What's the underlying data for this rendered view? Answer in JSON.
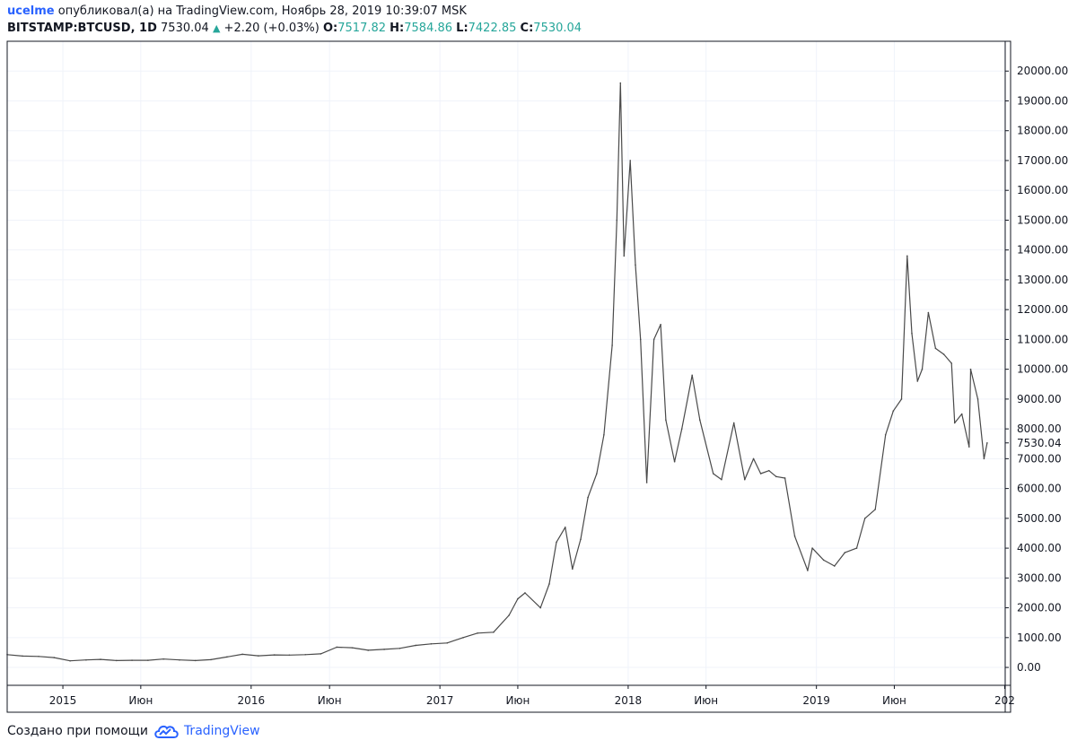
{
  "header": {
    "user": "ucelme",
    "published_text": "опубликовал(а) на TradingView.com, Ноябрь 28, 2019 10:39:07 MSK",
    "symbol": "BITSTAMP:BTCUSD, 1D",
    "price": "7530.04",
    "change": "+2.20 (+0.03%)",
    "o_label": "O:",
    "o_value": "7517.82",
    "h_label": "H:",
    "h_value": "7584.86",
    "l_label": "L:",
    "l_value": "7422.85",
    "c_label": "C:",
    "c_value": "7530.04"
  },
  "footer": {
    "created_text": "Создано при помощи",
    "brand": "TradingView"
  },
  "colors": {
    "accent": "#2962ff",
    "up": "#26a69a",
    "grid": "#f0f3fa",
    "candle": "#4a4a4a"
  },
  "chart_data": {
    "type": "line",
    "title": "",
    "xlabel": "",
    "ylabel": "",
    "ylim": [
      -600,
      21000
    ],
    "grid": true,
    "last_price_label": "7530.04",
    "y_ticks": [
      "0.00",
      "1000.00",
      "2000.00",
      "3000.00",
      "4000.00",
      "5000.00",
      "6000.00",
      "7000.00",
      "8000.00",
      "9000.00",
      "10000.00",
      "11000.00",
      "12000.00",
      "13000.00",
      "14000.00",
      "15000.00",
      "16000.00",
      "17000.00",
      "18000.00",
      "19000.00",
      "20000.00"
    ],
    "x_ticks": [
      "2015",
      "Июн",
      "2016",
      "Июн",
      "2017",
      "Июн",
      "2018",
      "Июн",
      "2019",
      "Июн",
      "202"
    ],
    "x_tick_values": [
      "2015-01-01",
      "2015-06-01",
      "2016-01-01",
      "2016-06-01",
      "2017-01-01",
      "2017-06-01",
      "2018-01-01",
      "2018-06-01",
      "2019-01-01",
      "2019-06-01",
      "2020-01-01"
    ],
    "x_range": [
      "2014-09-15",
      "2020-01-02"
    ],
    "series": [
      {
        "points": [
          [
            "2014-09-15",
            430
          ],
          [
            "2014-10-15",
            380
          ],
          [
            "2014-11-15",
            370
          ],
          [
            "2014-12-15",
            330
          ],
          [
            "2015-01-15",
            220
          ],
          [
            "2015-02-15",
            250
          ],
          [
            "2015-03-15",
            270
          ],
          [
            "2015-04-15",
            230
          ],
          [
            "2015-05-15",
            240
          ],
          [
            "2015-06-15",
            240
          ],
          [
            "2015-07-15",
            280
          ],
          [
            "2015-08-15",
            250
          ],
          [
            "2015-09-15",
            230
          ],
          [
            "2015-10-15",
            260
          ],
          [
            "2015-11-15",
            350
          ],
          [
            "2015-12-15",
            440
          ],
          [
            "2016-01-15",
            390
          ],
          [
            "2016-02-15",
            420
          ],
          [
            "2016-03-15",
            415
          ],
          [
            "2016-04-15",
            430
          ],
          [
            "2016-05-15",
            455
          ],
          [
            "2016-06-15",
            680
          ],
          [
            "2016-07-15",
            660
          ],
          [
            "2016-08-15",
            575
          ],
          [
            "2016-09-15",
            605
          ],
          [
            "2016-10-15",
            640
          ],
          [
            "2016-11-15",
            740
          ],
          [
            "2016-12-15",
            790
          ],
          [
            "2017-01-15",
            820
          ],
          [
            "2017-02-15",
            1000
          ],
          [
            "2017-03-15",
            1150
          ],
          [
            "2017-04-15",
            1180
          ],
          [
            "2017-05-15",
            1750
          ],
          [
            "2017-06-01",
            2300
          ],
          [
            "2017-06-15",
            2500
          ],
          [
            "2017-07-15",
            2000
          ],
          [
            "2017-08-01",
            2800
          ],
          [
            "2017-08-15",
            4200
          ],
          [
            "2017-09-01",
            4700
          ],
          [
            "2017-09-15",
            3300
          ],
          [
            "2017-10-01",
            4300
          ],
          [
            "2017-10-15",
            5700
          ],
          [
            "2017-11-01",
            6500
          ],
          [
            "2017-11-15",
            7800
          ],
          [
            "2017-12-01",
            10800
          ],
          [
            "2017-12-10",
            15000
          ],
          [
            "2017-12-17",
            19600
          ],
          [
            "2017-12-24",
            13800
          ],
          [
            "2018-01-05",
            17000
          ],
          [
            "2018-01-15",
            13500
          ],
          [
            "2018-01-25",
            11000
          ],
          [
            "2018-02-06",
            6200
          ],
          [
            "2018-02-20",
            11000
          ],
          [
            "2018-03-05",
            11500
          ],
          [
            "2018-03-15",
            8300
          ],
          [
            "2018-04-01",
            6900
          ],
          [
            "2018-04-15",
            8000
          ],
          [
            "2018-05-05",
            9800
          ],
          [
            "2018-05-20",
            8300
          ],
          [
            "2018-06-15",
            6500
          ],
          [
            "2018-07-01",
            6300
          ],
          [
            "2018-07-25",
            8200
          ],
          [
            "2018-08-15",
            6300
          ],
          [
            "2018-09-01",
            7000
          ],
          [
            "2018-09-15",
            6500
          ],
          [
            "2018-10-01",
            6600
          ],
          [
            "2018-10-15",
            6400
          ],
          [
            "2018-11-01",
            6350
          ],
          [
            "2018-11-20",
            4400
          ],
          [
            "2018-12-15",
            3250
          ],
          [
            "2018-12-24",
            4000
          ],
          [
            "2019-01-15",
            3600
          ],
          [
            "2019-02-05",
            3400
          ],
          [
            "2019-02-25",
            3850
          ],
          [
            "2019-03-20",
            4000
          ],
          [
            "2019-04-05",
            5000
          ],
          [
            "2019-04-25",
            5300
          ],
          [
            "2019-05-15",
            7800
          ],
          [
            "2019-05-30",
            8600
          ],
          [
            "2019-06-15",
            9000
          ],
          [
            "2019-06-26",
            13800
          ],
          [
            "2019-07-05",
            11200
          ],
          [
            "2019-07-16",
            9600
          ],
          [
            "2019-07-25",
            10000
          ],
          [
            "2019-08-06",
            11900
          ],
          [
            "2019-08-20",
            10700
          ],
          [
            "2019-09-05",
            10500
          ],
          [
            "2019-09-20",
            10200
          ],
          [
            "2019-09-26",
            8200
          ],
          [
            "2019-10-10",
            8500
          ],
          [
            "2019-10-24",
            7400
          ],
          [
            "2019-10-27",
            10000
          ],
          [
            "2019-11-10",
            9000
          ],
          [
            "2019-11-22",
            7000
          ],
          [
            "2019-11-28",
            7530
          ]
        ]
      }
    ]
  }
}
